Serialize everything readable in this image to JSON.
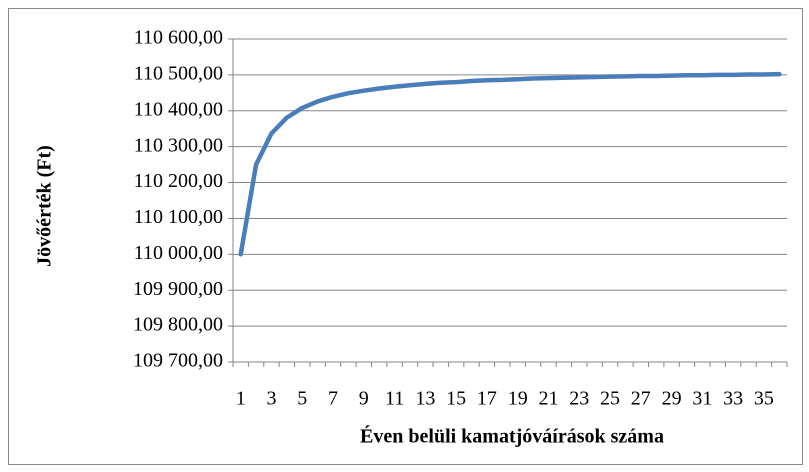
{
  "chart_data": {
    "type": "line",
    "y_label": "Jövőérték (Ft)",
    "x_label": "Éven belüli kamatjóváírások száma",
    "categories": [
      1,
      null,
      3,
      null,
      5,
      null,
      7,
      null,
      9,
      null,
      11,
      null,
      13,
      null,
      15,
      null,
      17,
      null,
      19,
      null,
      21,
      null,
      23,
      null,
      25,
      null,
      27,
      null,
      29,
      null,
      31,
      null,
      33,
      null,
      35,
      null
    ],
    "series": [
      {
        "name": "Jövőérték",
        "color": "#4a7ebb",
        "values": [
          110000,
          110250,
          110337,
          110381,
          110408,
          110426,
          110439,
          110449,
          110456,
          110462,
          110467,
          110471,
          110475,
          110478,
          110480,
          110483,
          110485,
          110486,
          110488,
          110490,
          110491,
          110492,
          110493,
          110494,
          110495,
          110496,
          110497,
          110497,
          110498,
          110499,
          110499,
          110500,
          110500,
          110501,
          110501,
          110502
        ]
      }
    ],
    "ylim": [
      109700,
      110600
    ],
    "yticks": [
      {
        "value": 109700,
        "label": "109 700,00"
      },
      {
        "value": 109800,
        "label": "109 800,00"
      },
      {
        "value": 109900,
        "label": "109 900,00"
      },
      {
        "value": 110000,
        "label": "110 000,00"
      },
      {
        "value": 110100,
        "label": "110 100,00"
      },
      {
        "value": 110200,
        "label": "110 200,00"
      },
      {
        "value": 110300,
        "label": "110 300,00"
      },
      {
        "value": 110400,
        "label": "110 400,00"
      },
      {
        "value": 110500,
        "label": "110 500,00"
      },
      {
        "value": 110600,
        "label": "110 600,00"
      }
    ],
    "grid": true
  }
}
